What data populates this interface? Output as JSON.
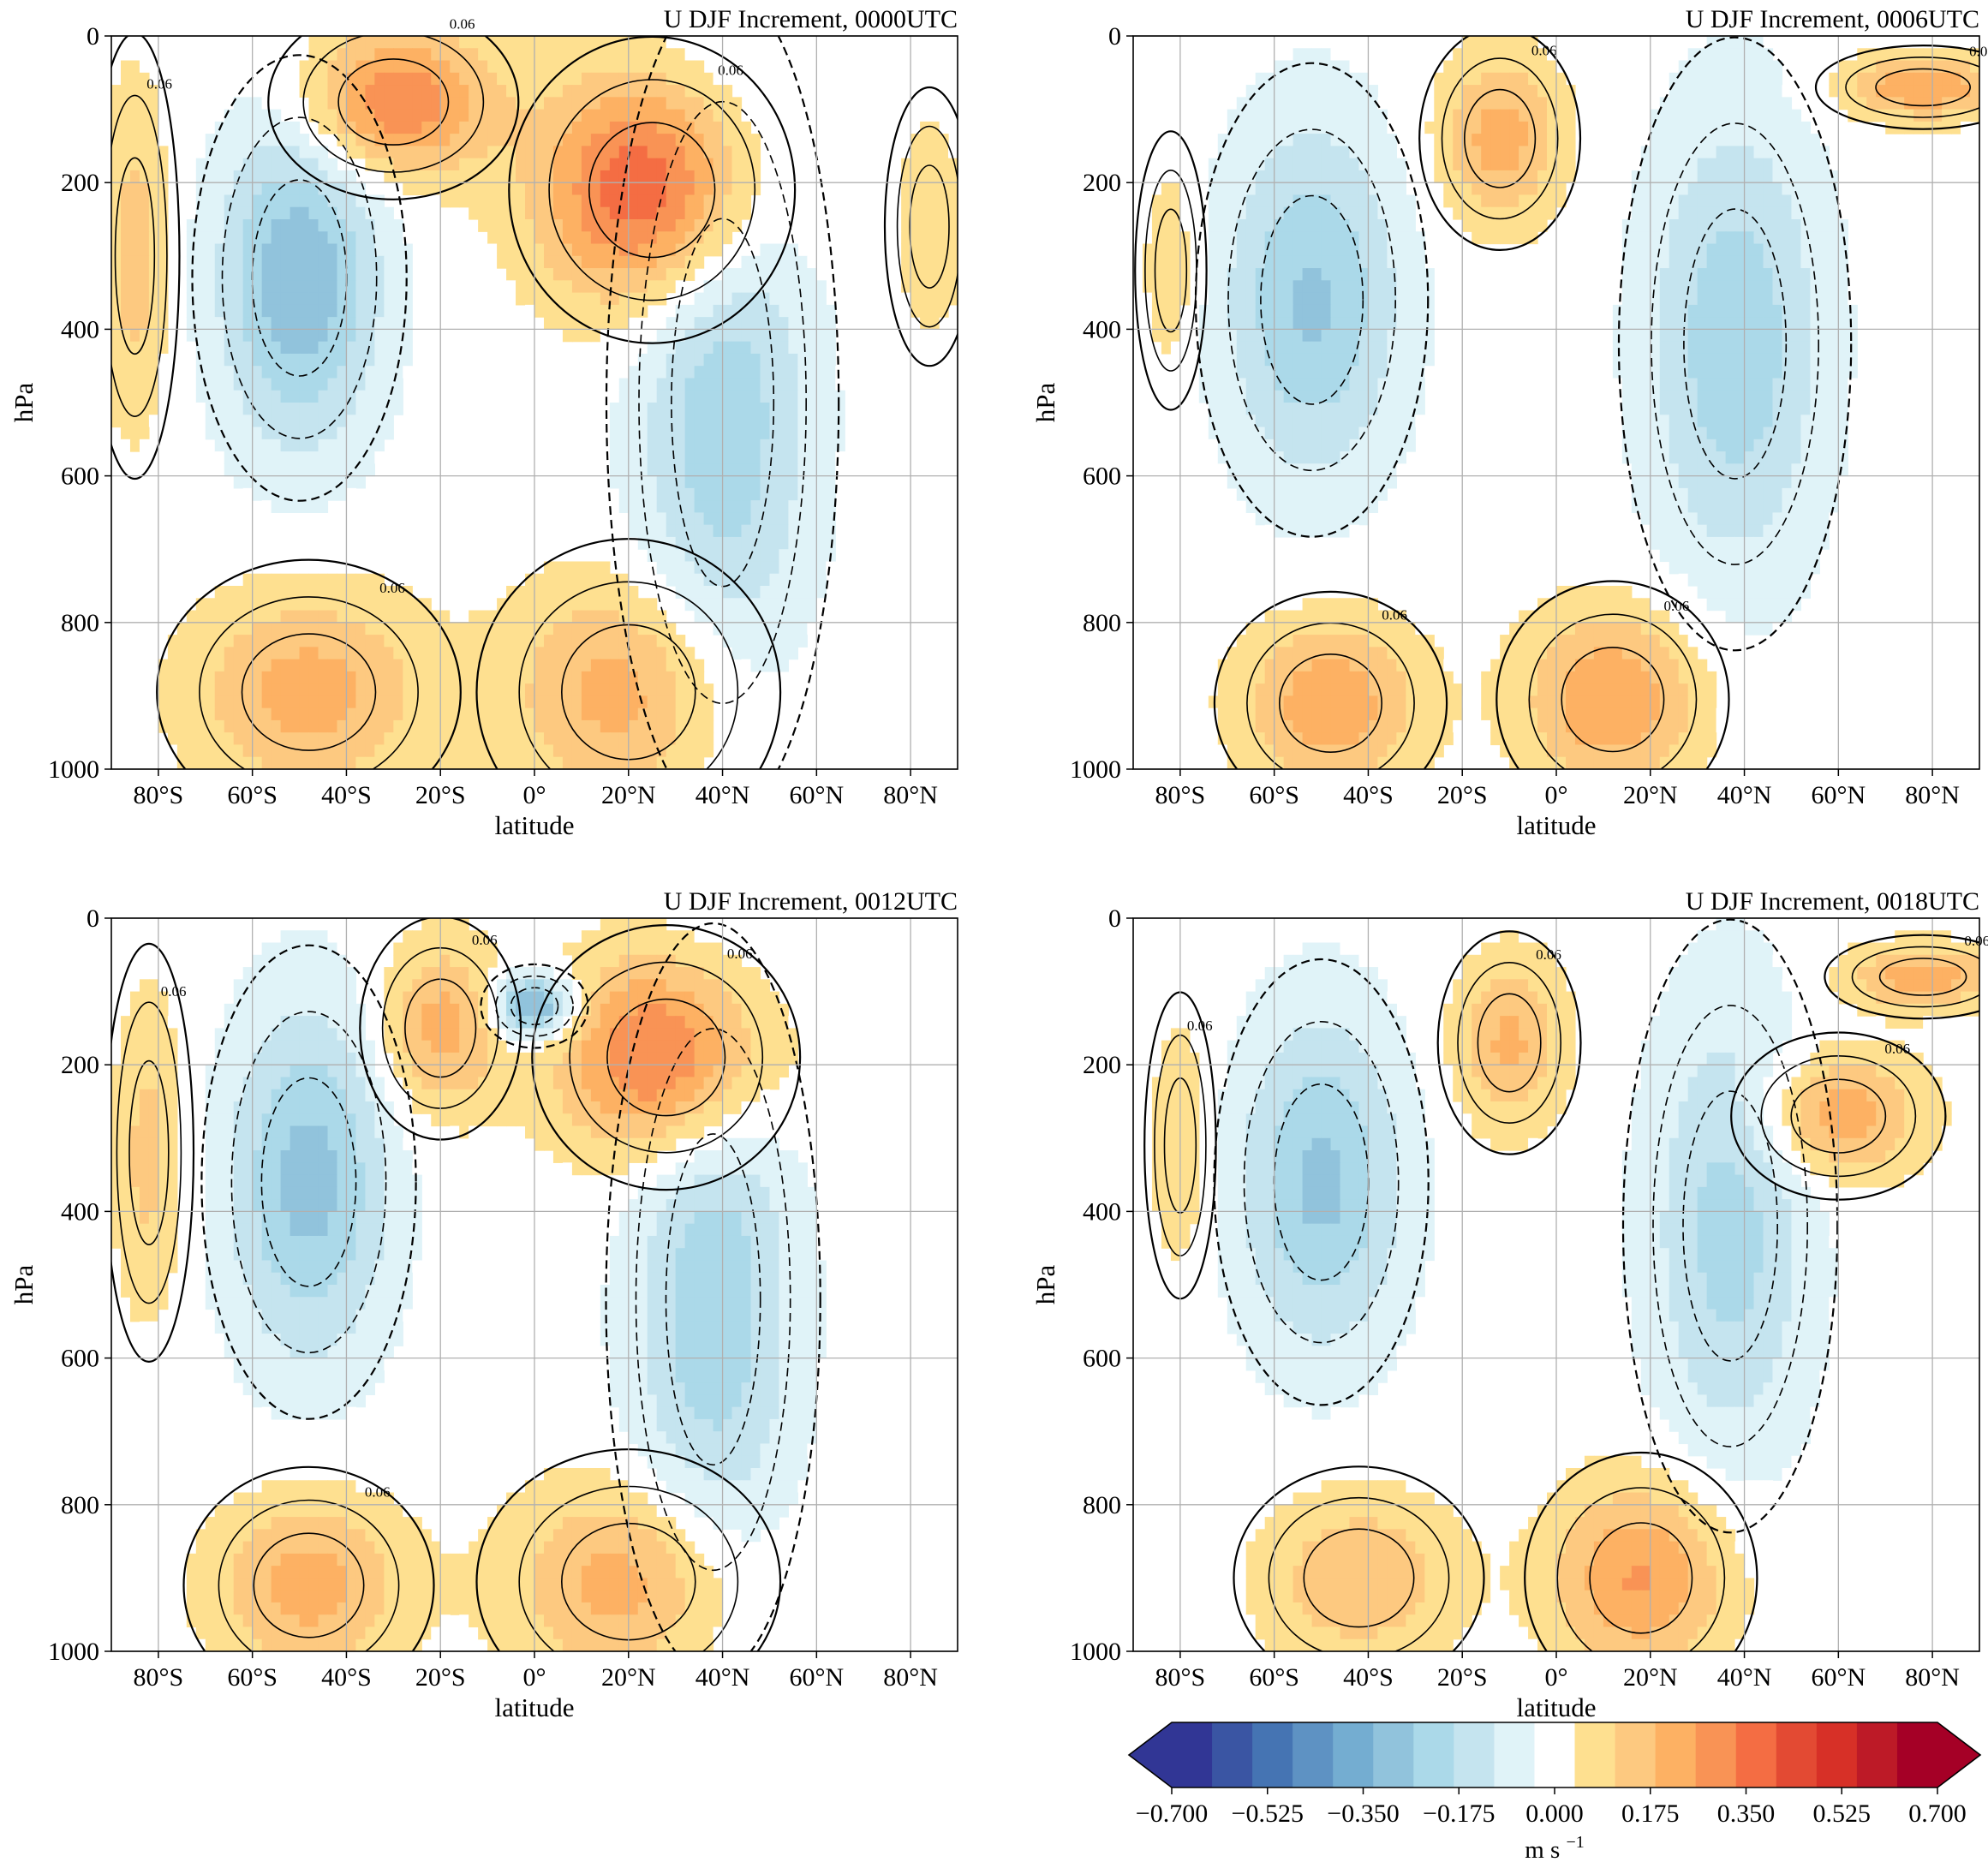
{
  "chart_data": [
    {
      "type": "contour",
      "title": "U DJF Increment, 0000UTC",
      "xlabel": "latitude",
      "ylabel": "hPa",
      "xlim": [
        -90,
        90
      ],
      "ylim": [
        1000,
        0
      ],
      "x_ticks": [
        "80°S",
        "60°S",
        "40°S",
        "20°S",
        "0°",
        "20°N",
        "40°N",
        "60°N",
        "80°N"
      ],
      "y_ticks": [
        "0",
        "200",
        "400",
        "600",
        "800",
        "1000"
      ],
      "grid": true,
      "contour_label": "0.06",
      "features": [
        {
          "sign": "pos",
          "lat": -30,
          "p": 90,
          "dlat": 14,
          "dp": 70,
          "amp": 0.34
        },
        {
          "sign": "pos",
          "lat": 25,
          "p": 210,
          "dlat": 16,
          "dp": 110,
          "amp": 0.44
        },
        {
          "sign": "pos",
          "lat": -85,
          "p": 300,
          "dlat": 5,
          "dp": 160,
          "amp": 0.15
        },
        {
          "sign": "pos",
          "lat": -48,
          "p": 895,
          "dlat": 17,
          "dp": 95,
          "amp": 0.22
        },
        {
          "sign": "pos",
          "lat": 20,
          "p": 895,
          "dlat": 17,
          "dp": 110,
          "amp": 0.23
        },
        {
          "sign": "neg",
          "lat": -50,
          "p": 330,
          "dlat": 12,
          "dp": 160,
          "amp": -0.32
        },
        {
          "sign": "neg",
          "lat": 40,
          "p": 500,
          "dlat": 13,
          "dp": 300,
          "amp": -0.24
        },
        {
          "sign": "pos",
          "lat": 84,
          "p": 260,
          "dlat": 5,
          "dp": 100,
          "amp": 0.1
        }
      ]
    },
    {
      "type": "contour",
      "title": "U DJF Increment, 0006UTC",
      "xlabel": "latitude",
      "ylabel": "hPa",
      "xlim": [
        -90,
        90
      ],
      "ylim": [
        1000,
        0
      ],
      "x_ticks": [
        "80°S",
        "60°S",
        "40°S",
        "20°S",
        "0°",
        "20°N",
        "40°N",
        "60°N",
        "80°N"
      ],
      "y_ticks": [
        "0",
        "200",
        "400",
        "600",
        "800",
        "1000"
      ],
      "grid": true,
      "contour_label": "0.06",
      "features": [
        {
          "sign": "pos",
          "lat": -12,
          "p": 140,
          "dlat": 9,
          "dp": 80,
          "amp": 0.22
        },
        {
          "sign": "pos",
          "lat": 78,
          "p": 70,
          "dlat": 12,
          "dp": 30,
          "amp": 0.26
        },
        {
          "sign": "pos",
          "lat": -48,
          "p": 910,
          "dlat": 13,
          "dp": 80,
          "amp": 0.24
        },
        {
          "sign": "pos",
          "lat": 12,
          "p": 905,
          "dlat": 13,
          "dp": 85,
          "amp": 0.26
        },
        {
          "sign": "pos",
          "lat": -82,
          "p": 320,
          "dlat": 4,
          "dp": 100,
          "amp": 0.1
        },
        {
          "sign": "neg",
          "lat": -52,
          "p": 360,
          "dlat": 13,
          "dp": 170,
          "amp": -0.27
        },
        {
          "sign": "neg",
          "lat": 38,
          "p": 420,
          "dlat": 13,
          "dp": 220,
          "amp": -0.24
        }
      ]
    },
    {
      "type": "contour",
      "title": "U DJF Increment, 0012UTC",
      "xlabel": "latitude",
      "ylabel": "hPa",
      "xlim": [
        -90,
        90
      ],
      "ylim": [
        1000,
        0
      ],
      "x_ticks": [
        "80°S",
        "60°S",
        "40°S",
        "20°S",
        "0°",
        "20°N",
        "40°N",
        "60°N",
        "80°N"
      ],
      "y_ticks": [
        "0",
        "200",
        "400",
        "600",
        "800",
        "1000"
      ],
      "grid": true,
      "contour_label": "0.06",
      "features": [
        {
          "sign": "pos",
          "lat": 28,
          "p": 190,
          "dlat": 15,
          "dp": 95,
          "amp": 0.4
        },
        {
          "sign": "pos",
          "lat": -20,
          "p": 150,
          "dlat": 9,
          "dp": 80,
          "amp": 0.22
        },
        {
          "sign": "pos",
          "lat": -82,
          "p": 320,
          "dlat": 5,
          "dp": 150,
          "amp": 0.14
        },
        {
          "sign": "pos",
          "lat": -48,
          "p": 910,
          "dlat": 14,
          "dp": 85,
          "amp": 0.22
        },
        {
          "sign": "pos",
          "lat": 20,
          "p": 905,
          "dlat": 17,
          "dp": 95,
          "amp": 0.23
        },
        {
          "sign": "neg",
          "lat": -48,
          "p": 360,
          "dlat": 12,
          "dp": 170,
          "amp": -0.29
        },
        {
          "sign": "neg",
          "lat": 38,
          "p": 520,
          "dlat": 12,
          "dp": 270,
          "amp": -0.24
        },
        {
          "sign": "neg",
          "lat": 0,
          "p": 120,
          "dlat": 6,
          "dp": 30,
          "amp": -0.4
        }
      ]
    },
    {
      "type": "contour",
      "title": "U DJF Increment, 0018UTC",
      "xlabel": "latitude",
      "ylabel": "hPa",
      "xlim": [
        -90,
        90
      ],
      "ylim": [
        1000,
        0
      ],
      "x_ticks": [
        "80°S",
        "60°S",
        "40°S",
        "20°S",
        "0°",
        "20°N",
        "40°N",
        "60°N",
        "80°N"
      ],
      "y_ticks": [
        "0",
        "200",
        "400",
        "600",
        "800",
        "1000"
      ],
      "grid": true,
      "contour_label": "0.06",
      "features": [
        {
          "sign": "pos",
          "lat": -10,
          "p": 170,
          "dlat": 8,
          "dp": 80,
          "amp": 0.2
        },
        {
          "sign": "pos",
          "lat": 60,
          "p": 270,
          "dlat": 12,
          "dp": 60,
          "amp": 0.24
        },
        {
          "sign": "pos",
          "lat": 78,
          "p": 80,
          "dlat": 11,
          "dp": 30,
          "amp": 0.24
        },
        {
          "sign": "pos",
          "lat": -80,
          "p": 310,
          "dlat": 4,
          "dp": 110,
          "amp": 0.12
        },
        {
          "sign": "pos",
          "lat": -42,
          "p": 900,
          "dlat": 14,
          "dp": 80,
          "amp": 0.18
        },
        {
          "sign": "pos",
          "lat": 18,
          "p": 900,
          "dlat": 13,
          "dp": 90,
          "amp": 0.27
        },
        {
          "sign": "neg",
          "lat": -50,
          "p": 360,
          "dlat": 12,
          "dp": 160,
          "amp": -0.28
        },
        {
          "sign": "neg",
          "lat": 37,
          "p": 420,
          "dlat": 12,
          "dp": 220,
          "amp": -0.22
        }
      ]
    }
  ],
  "colorbar": {
    "label_unit": "m s",
    "label_exp": "−1",
    "vmin": -0.7,
    "vmax": 0.7,
    "ticks": [
      "−0.700",
      "−0.525",
      "−0.350",
      "−0.175",
      "0.000",
      "0.175",
      "0.350",
      "0.525",
      "0.700"
    ],
    "extend": "both",
    "colors": [
      "#313695",
      "#3a55a3",
      "#4574b3",
      "#5e92c3",
      "#74add1",
      "#91c3dc",
      "#abd9e9",
      "#c5e4ef",
      "#e0f3f8",
      "#ffffff",
      "#fee090",
      "#fdc980",
      "#fdb163",
      "#f99355",
      "#f46d43",
      "#e34a33",
      "#d73027",
      "#bd1a27",
      "#a50026"
    ],
    "low_extend_color": "#313695",
    "high_extend_color": "#a50026"
  }
}
